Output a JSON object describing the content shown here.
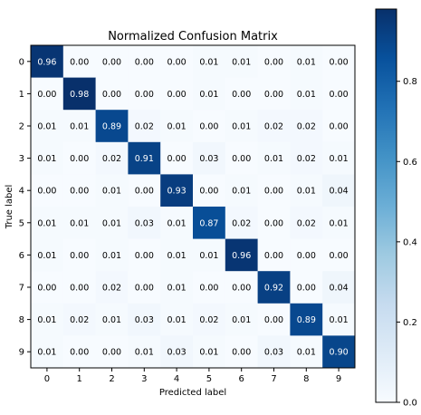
{
  "chart_data": {
    "type": "heatmap",
    "title": "Normalized Confusion Matrix",
    "xlabel": "Predicted label",
    "ylabel": "True label",
    "x_categories": [
      "0",
      "1",
      "2",
      "3",
      "4",
      "5",
      "6",
      "7",
      "8",
      "9"
    ],
    "y_categories": [
      "0",
      "1",
      "2",
      "3",
      "4",
      "5",
      "6",
      "7",
      "8",
      "9"
    ],
    "values": [
      [
        0.96,
        0.0,
        0.0,
        0.0,
        0.0,
        0.01,
        0.01,
        0.0,
        0.01,
        0.0
      ],
      [
        0.0,
        0.98,
        0.0,
        0.0,
        0.0,
        0.01,
        0.0,
        0.0,
        0.01,
        0.0
      ],
      [
        0.01,
        0.01,
        0.89,
        0.02,
        0.01,
        0.0,
        0.01,
        0.02,
        0.02,
        0.0
      ],
      [
        0.01,
        0.0,
        0.02,
        0.91,
        0.0,
        0.03,
        0.0,
        0.01,
        0.02,
        0.01
      ],
      [
        0.0,
        0.0,
        0.01,
        0.0,
        0.93,
        0.0,
        0.01,
        0.0,
        0.01,
        0.04
      ],
      [
        0.01,
        0.01,
        0.01,
        0.03,
        0.01,
        0.87,
        0.02,
        0.0,
        0.02,
        0.01
      ],
      [
        0.01,
        0.0,
        0.01,
        0.0,
        0.01,
        0.01,
        0.96,
        0.0,
        0.0,
        0.0
      ],
      [
        0.0,
        0.0,
        0.02,
        0.0,
        0.01,
        0.0,
        0.0,
        0.92,
        0.0,
        0.04
      ],
      [
        0.01,
        0.02,
        0.01,
        0.03,
        0.01,
        0.02,
        0.01,
        0.0,
        0.89,
        0.01
      ],
      [
        0.01,
        0.0,
        0.0,
        0.01,
        0.03,
        0.01,
        0.0,
        0.03,
        0.01,
        0.9
      ]
    ],
    "colormap": "Blues",
    "colorbar": {
      "range": [
        0.0,
        0.98
      ],
      "ticks": [
        0.0,
        0.2,
        0.4,
        0.6,
        0.8
      ],
      "tick_labels": [
        "0.0",
        "0.2",
        "0.4",
        "0.6",
        "0.8"
      ]
    },
    "grid": false
  }
}
